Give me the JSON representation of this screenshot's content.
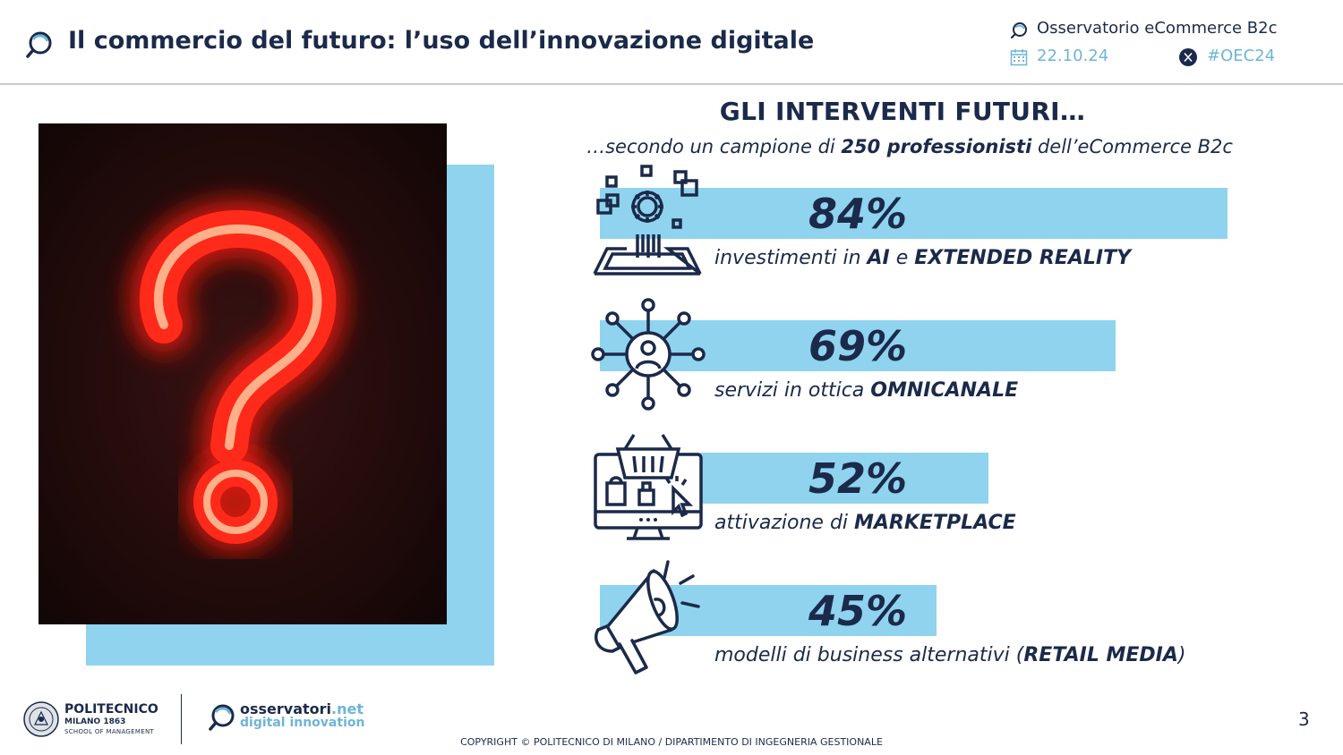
{
  "header": {
    "title": "Il commercio del futuro: l’uso dell’innovazione digitale",
    "observatory": "Osservatorio eCommerce B2c",
    "date": "22.10.24",
    "hashtag": "#OEC24"
  },
  "section": {
    "title": "GLI INTERVENTI FUTURI…",
    "subtitle_pre": "…secondo un campione di ",
    "subtitle_bold": "250 professionisti",
    "subtitle_post": " dell’eCommerce B2c"
  },
  "items": [
    {
      "percent_value": 84,
      "percent": "84%",
      "label_pre": "investimenti in ",
      "label_b1": "AI",
      "label_mid": " e ",
      "label_b2": "EXTENDED REALITY",
      "label_post": "",
      "icon": "ai-tech-icon"
    },
    {
      "percent_value": 69,
      "percent": "69%",
      "label_pre": "servizi in ottica ",
      "label_b1": "OMNICANALE",
      "label_mid": "",
      "label_b2": "",
      "label_post": "",
      "icon": "network-user-icon"
    },
    {
      "percent_value": 52,
      "percent": "52%",
      "label_pre": "attivazione di ",
      "label_b1": "MARKETPLACE",
      "label_mid": "",
      "label_b2": "",
      "label_post": "",
      "icon": "ecommerce-monitor-icon"
    },
    {
      "percent_value": 45,
      "percent": "45%",
      "label_pre": "modelli di business alternativi (",
      "label_b1": "RETAIL MEDIA",
      "label_mid": "",
      "label_b2": "",
      "label_post": ")",
      "icon": "megaphone-icon"
    }
  ],
  "footer": {
    "polimi_name": "POLITECNICO",
    "polimi_sub1": "MILANO 1863",
    "polimi_sub2": "SCHOOL OF MANAGEMENT",
    "osn_name_a": "osservatori",
    "osn_name_b": ".net",
    "osn_sub": "digital innovation",
    "copyright": "COPYRIGHT © POLITECNICO DI MILANO / DIPARTIMENTO DI INGEGNERIA GESTIONALE",
    "page_number": "3"
  },
  "colors": {
    "navy": "#1b2a4a",
    "light_blue": "#8fd3ef",
    "accent_blue": "#6fb4d9",
    "neon_red": "#ff3322"
  }
}
